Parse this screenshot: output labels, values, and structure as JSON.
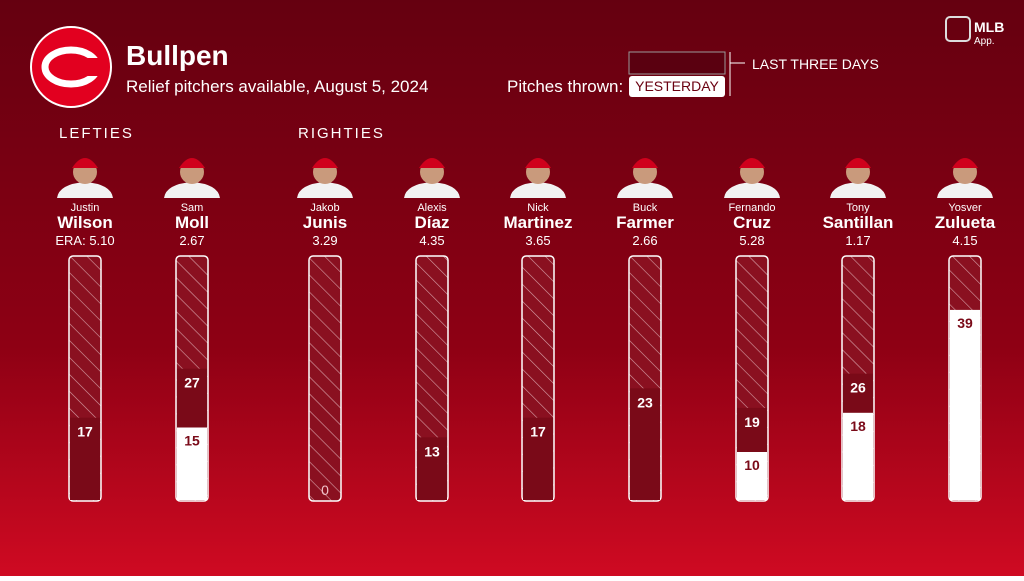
{
  "header": {
    "title": "Bullpen",
    "subtitle": "Relief pitchers available, August 5, 2024",
    "brand": "MLB",
    "brand_sub": "App."
  },
  "legend": {
    "label": "Pitches thrown:",
    "yesterday": "YESTERDAY",
    "three_day": "LAST THREE DAYS"
  },
  "groups": [
    {
      "label": "LEFTIES"
    },
    {
      "label": "RIGHTIES"
    }
  ],
  "ylim": [
    0,
    50
  ],
  "pitchers": [
    {
      "first": "Justin",
      "last": "Wilson",
      "era": "ERA: 5.10",
      "three_day": 17,
      "yesterday": null
    },
    {
      "first": "Sam",
      "last": "Moll",
      "era": "2.67",
      "three_day": 27,
      "yesterday": 15
    },
    {
      "first": "Jakob",
      "last": "Junis",
      "era": "3.29",
      "three_day": 0,
      "yesterday": null
    },
    {
      "first": "Alexis",
      "last": "Díaz",
      "era": "4.35",
      "three_day": 13,
      "yesterday": null
    },
    {
      "first": "Nick",
      "last": "Martinez",
      "era": "3.65",
      "three_day": 17,
      "yesterday": null
    },
    {
      "first": "Buck",
      "last": "Farmer",
      "era": "2.66",
      "three_day": 23,
      "yesterday": null
    },
    {
      "first": "Fernando",
      "last": "Cruz",
      "era": "5.28",
      "three_day": 19,
      "yesterday": 10
    },
    {
      "first": "Tony",
      "last": "Santillan",
      "era": "1.17",
      "three_day": 26,
      "yesterday": 18
    },
    {
      "first": "Yosver",
      "last": "Zulueta",
      "era": "4.15",
      "three_day": null,
      "yesterday": 39
    }
  ]
}
